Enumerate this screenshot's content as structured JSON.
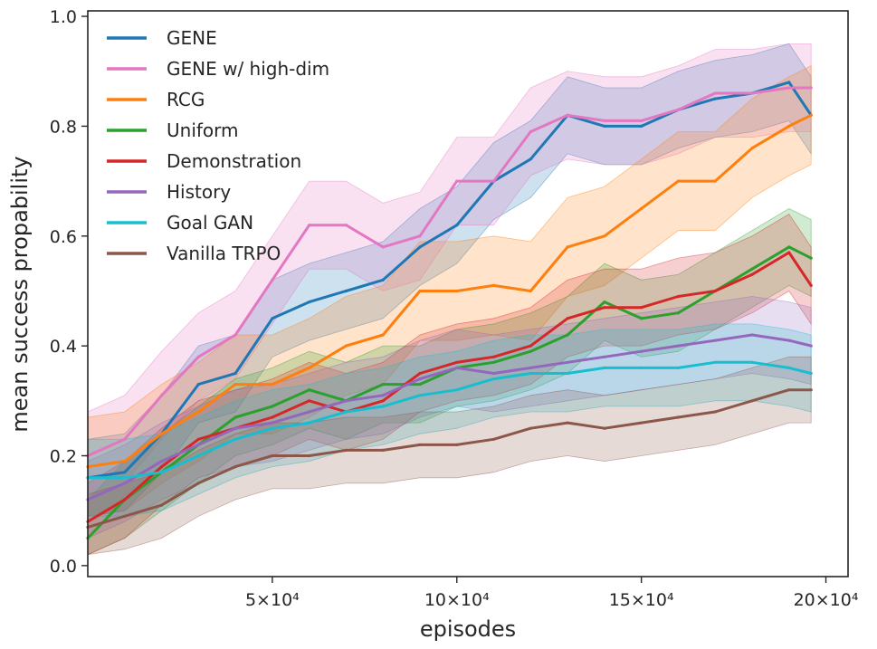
{
  "chart_data": {
    "type": "line",
    "title": "",
    "xlabel": "episodes",
    "ylabel": "mean success propability",
    "xlim": [
      0,
      206000
    ],
    "ylim": [
      -0.02,
      1.01
    ],
    "x_ticks": [
      {
        "value": 50000,
        "label": "5×10⁴"
      },
      {
        "value": 100000,
        "label": "10×10⁴"
      },
      {
        "value": 150000,
        "label": "15×10⁴"
      },
      {
        "value": 200000,
        "label": "20×10⁴"
      }
    ],
    "y_ticks": [
      {
        "value": 0.0,
        "label": "0.0"
      },
      {
        "value": 0.2,
        "label": "0.2"
      },
      {
        "value": 0.4,
        "label": "0.4"
      },
      {
        "value": 0.6,
        "label": "0.6"
      },
      {
        "value": 0.8,
        "label": "0.8"
      },
      {
        "value": 1.0,
        "label": "1.0"
      }
    ],
    "legend_position": "top-left",
    "x": [
      0,
      10000,
      20000,
      30000,
      40000,
      50000,
      60000,
      70000,
      80000,
      90000,
      100000,
      110000,
      120000,
      130000,
      140000,
      150000,
      160000,
      170000,
      180000,
      190000,
      196000
    ],
    "series": [
      {
        "name": "GENE",
        "color": "#1f77b4",
        "band": 0.07,
        "values": [
          0.16,
          0.17,
          0.24,
          0.33,
          0.35,
          0.45,
          0.48,
          0.5,
          0.52,
          0.58,
          0.62,
          0.7,
          0.74,
          0.82,
          0.8,
          0.8,
          0.83,
          0.85,
          0.86,
          0.88,
          0.82
        ]
      },
      {
        "name": "GENE w/ high-dim",
        "color": "#e377c2",
        "band": 0.08,
        "values": [
          0.2,
          0.23,
          0.31,
          0.38,
          0.42,
          0.52,
          0.62,
          0.62,
          0.58,
          0.6,
          0.7,
          0.7,
          0.79,
          0.82,
          0.81,
          0.81,
          0.83,
          0.86,
          0.86,
          0.87,
          0.87
        ]
      },
      {
        "name": "RCG",
        "color": "#ff7f0e",
        "band": 0.09,
        "values": [
          0.18,
          0.19,
          0.24,
          0.28,
          0.33,
          0.33,
          0.36,
          0.4,
          0.42,
          0.5,
          0.5,
          0.51,
          0.5,
          0.58,
          0.6,
          0.65,
          0.7,
          0.7,
          0.76,
          0.8,
          0.82
        ]
      },
      {
        "name": "Uniform",
        "color": "#2ca02c",
        "band": 0.07,
        "values": [
          0.05,
          0.12,
          0.17,
          0.22,
          0.27,
          0.29,
          0.32,
          0.3,
          0.33,
          0.33,
          0.36,
          0.37,
          0.39,
          0.42,
          0.48,
          0.45,
          0.46,
          0.5,
          0.54,
          0.58,
          0.56
        ]
      },
      {
        "name": "Demonstration",
        "color": "#d62728",
        "band": 0.07,
        "values": [
          0.08,
          0.12,
          0.18,
          0.23,
          0.25,
          0.27,
          0.3,
          0.28,
          0.3,
          0.35,
          0.37,
          0.38,
          0.4,
          0.45,
          0.47,
          0.47,
          0.49,
          0.5,
          0.53,
          0.57,
          0.51
        ]
      },
      {
        "name": "History",
        "color": "#9467bd",
        "band": 0.07,
        "values": [
          0.12,
          0.15,
          0.19,
          0.22,
          0.25,
          0.26,
          0.28,
          0.3,
          0.31,
          0.34,
          0.36,
          0.35,
          0.36,
          0.37,
          0.38,
          0.39,
          0.4,
          0.41,
          0.42,
          0.41,
          0.4
        ]
      },
      {
        "name": "Goal GAN",
        "color": "#17becf",
        "band": 0.07,
        "values": [
          0.16,
          0.16,
          0.17,
          0.2,
          0.23,
          0.25,
          0.26,
          0.28,
          0.29,
          0.31,
          0.32,
          0.34,
          0.35,
          0.35,
          0.36,
          0.36,
          0.36,
          0.37,
          0.37,
          0.36,
          0.35
        ]
      },
      {
        "name": "Vanilla TRPO",
        "color": "#8c564b",
        "band": 0.06,
        "values": [
          0.07,
          0.09,
          0.11,
          0.15,
          0.18,
          0.2,
          0.2,
          0.21,
          0.21,
          0.22,
          0.22,
          0.23,
          0.25,
          0.26,
          0.25,
          0.26,
          0.27,
          0.28,
          0.3,
          0.32,
          0.32
        ]
      }
    ]
  }
}
